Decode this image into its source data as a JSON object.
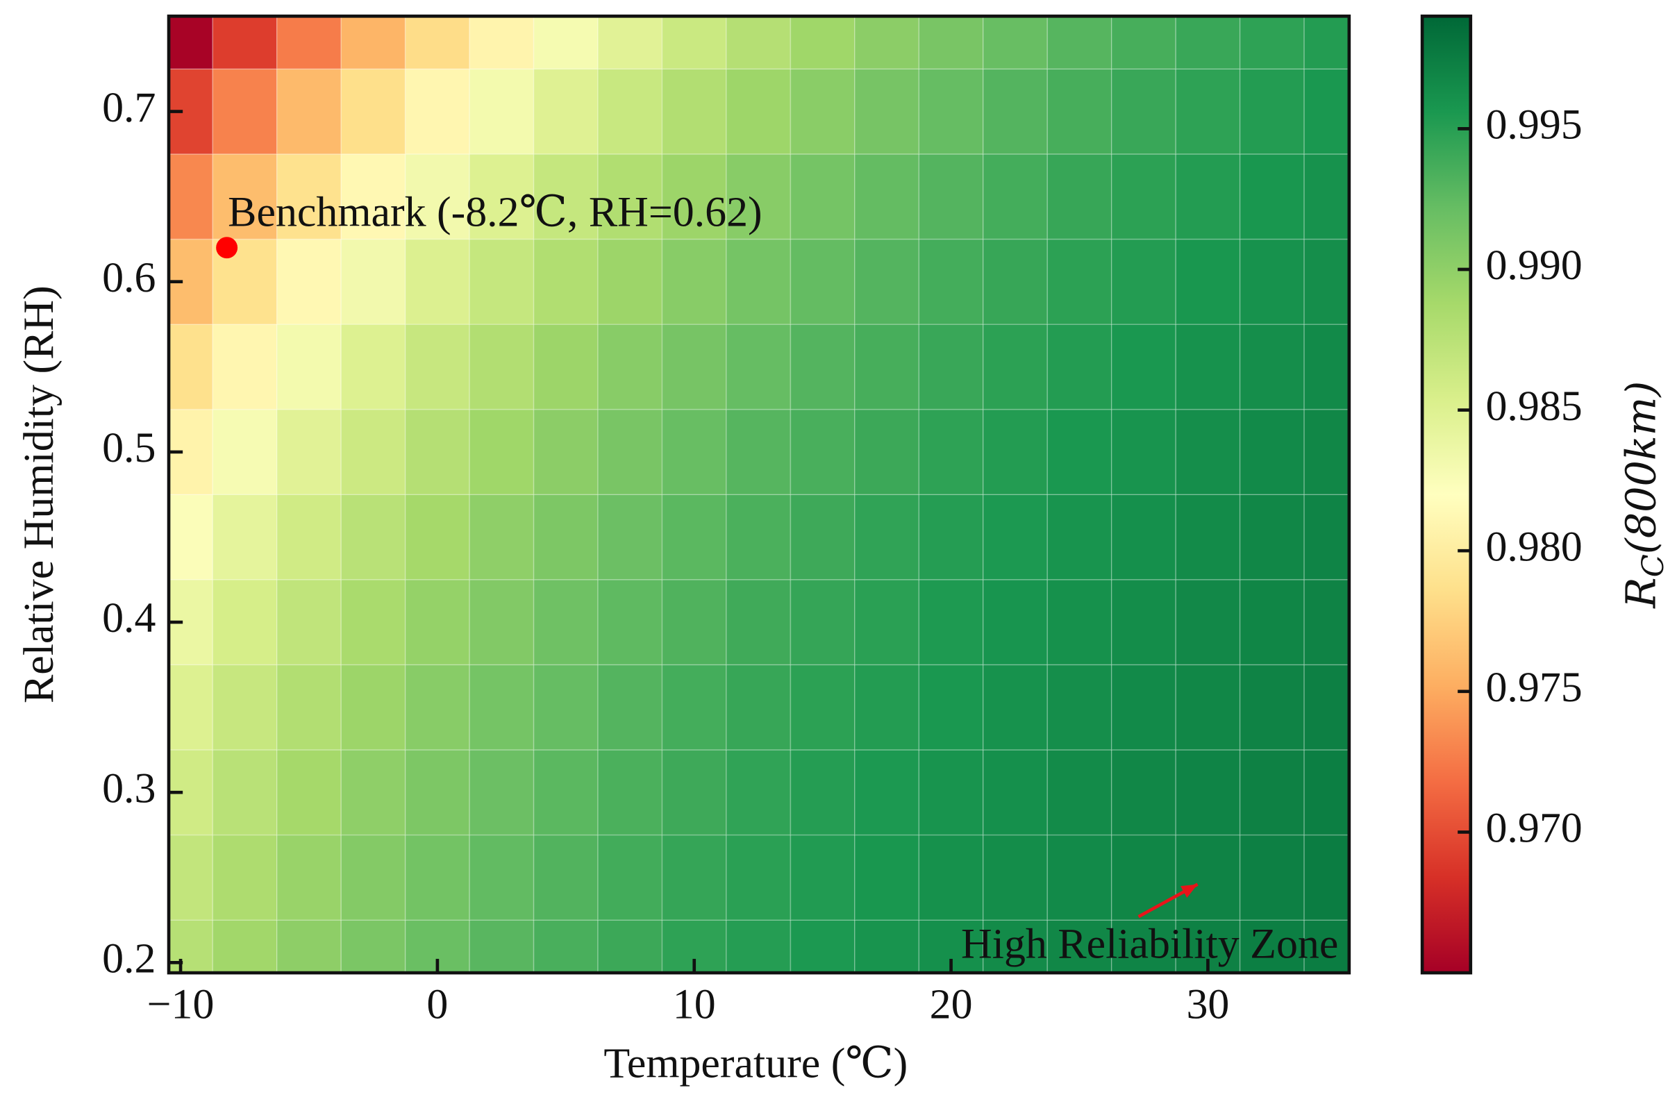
{
  "chart_data": {
    "type": "heatmap",
    "xlabel": "Temperature (℃)",
    "ylabel": "Relative Humidity (RH)",
    "xlim": [
      -10.46,
      35.5
    ],
    "ylim": [
      0.194,
      0.756
    ],
    "xticks": [
      {
        "value": -10,
        "label": "−10"
      },
      0,
      10,
      20,
      30
    ],
    "yticks": [
      0.2,
      0.3,
      0.4,
      0.5,
      0.6,
      0.7
    ],
    "x": [
      -10,
      -7.5,
      -5,
      -2.5,
      0,
      2.5,
      5,
      7.5,
      10,
      12.5,
      15,
      17.5,
      20,
      22.5,
      25,
      27.5,
      30,
      32.5,
      35
    ],
    "y": [
      0.2,
      0.25,
      0.3,
      0.35,
      0.4,
      0.45,
      0.5,
      0.55,
      0.6,
      0.65,
      0.7,
      0.75
    ],
    "values": [
      [
        0.9877,
        0.989,
        0.9901,
        0.9911,
        0.992,
        0.9928,
        0.9935,
        0.9941,
        0.9947,
        0.9951,
        0.9955,
        0.9959,
        0.9962,
        0.9965,
        0.9968,
        0.997,
        0.9972,
        0.9974,
        0.9975
      ],
      [
        0.9869,
        0.9883,
        0.9895,
        0.9906,
        0.9915,
        0.9924,
        0.9931,
        0.9938,
        0.9944,
        0.9949,
        0.9953,
        0.9957,
        0.9961,
        0.9964,
        0.9966,
        0.9969,
        0.9971,
        0.9973,
        0.9975
      ],
      [
        0.986,
        0.9875,
        0.9888,
        0.99,
        0.991,
        0.9919,
        0.9927,
        0.9934,
        0.994,
        0.9946,
        0.9951,
        0.9955,
        0.9959,
        0.9962,
        0.9965,
        0.9968,
        0.997,
        0.9972,
        0.9974
      ],
      [
        0.985,
        0.9866,
        0.988,
        0.9893,
        0.9904,
        0.9914,
        0.9922,
        0.993,
        0.9937,
        0.9943,
        0.9948,
        0.9952,
        0.9956,
        0.996,
        0.9963,
        0.9966,
        0.9968,
        0.9971,
        0.9973
      ],
      [
        0.9838,
        0.9856,
        0.9871,
        0.9885,
        0.9897,
        0.9907,
        0.9917,
        0.9925,
        0.9932,
        0.9939,
        0.9944,
        0.9949,
        0.9954,
        0.9958,
        0.9961,
        0.9964,
        0.9967,
        0.9969,
        0.9971
      ],
      [
        0.9824,
        0.9843,
        0.986,
        0.9875,
        0.9888,
        0.99,
        0.991,
        0.9919,
        0.9927,
        0.9934,
        0.994,
        0.9946,
        0.9951,
        0.9955,
        0.9959,
        0.9962,
        0.9965,
        0.9968,
        0.997
      ],
      [
        0.9807,
        0.9828,
        0.9847,
        0.9863,
        0.9878,
        0.9891,
        0.9902,
        0.9912,
        0.9921,
        0.9929,
        0.9935,
        0.9941,
        0.9947,
        0.9952,
        0.9956,
        0.9959,
        0.9963,
        0.9966,
        0.9968
      ],
      [
        0.9787,
        0.981,
        0.9831,
        0.985,
        0.9866,
        0.988,
        0.9893,
        0.9904,
        0.9913,
        0.9922,
        0.993,
        0.9936,
        0.9942,
        0.9948,
        0.9952,
        0.9956,
        0.996,
        0.9963,
        0.9966
      ],
      [
        0.9762,
        0.9788,
        0.9812,
        0.9832,
        0.9851,
        0.9867,
        0.9881,
        0.9893,
        0.9904,
        0.9914,
        0.9923,
        0.993,
        0.9937,
        0.9943,
        0.9948,
        0.9952,
        0.9957,
        0.996,
        0.9963
      ],
      [
        0.9732,
        0.9762,
        0.9788,
        0.9812,
        0.9832,
        0.985,
        0.9867,
        0.9881,
        0.9893,
        0.9904,
        0.9914,
        0.9923,
        0.993,
        0.9937,
        0.9943,
        0.9948,
        0.9952,
        0.9957,
        0.996
      ],
      [
        0.9695,
        0.9729,
        0.976,
        0.9786,
        0.981,
        0.9831,
        0.9849,
        0.9865,
        0.988,
        0.9892,
        0.9903,
        0.9913,
        0.9922,
        0.993,
        0.9936,
        0.9942,
        0.9947,
        0.9952,
        0.9956
      ],
      [
        0.9652,
        0.9691,
        0.9726,
        0.9757,
        0.9784,
        0.9808,
        0.9829,
        0.9847,
        0.9864,
        0.9878,
        0.9891,
        0.9902,
        0.9912,
        0.9921,
        0.9929,
        0.9936,
        0.9942,
        0.9947,
        0.9952
      ]
    ],
    "colormap": [
      "#a50026",
      "#d73027",
      "#f46d43",
      "#fdae61",
      "#fee08b",
      "#ffffbf",
      "#d9ef8b",
      "#a6d96a",
      "#66bd63",
      "#1a9850",
      "#006837"
    ],
    "colorbar": {
      "label": {
        "main": "R",
        "sub": "C",
        "rest": "(800km)"
      },
      "clim": [
        0.965,
        0.999
      ],
      "ticks": [
        {
          "value": 0.97,
          "label": "0.970"
        },
        {
          "value": 0.975,
          "label": "0.975"
        },
        {
          "value": 0.98,
          "label": "0.980"
        },
        {
          "value": 0.985,
          "label": "0.985"
        },
        {
          "value": 0.99,
          "label": "0.990"
        },
        {
          "value": 0.995,
          "label": "0.995"
        }
      ]
    },
    "benchmark": {
      "label": "Benchmark (-8.2℃, RH=0.62)",
      "x": -8.2,
      "y": 0.62,
      "color": "#ff0000"
    },
    "zone": {
      "text": "High Reliability Zone",
      "xy": [
        29.6,
        0.246
      ],
      "xytext": [
        27.3,
        0.227
      ],
      "color": "#e8141a"
    }
  }
}
